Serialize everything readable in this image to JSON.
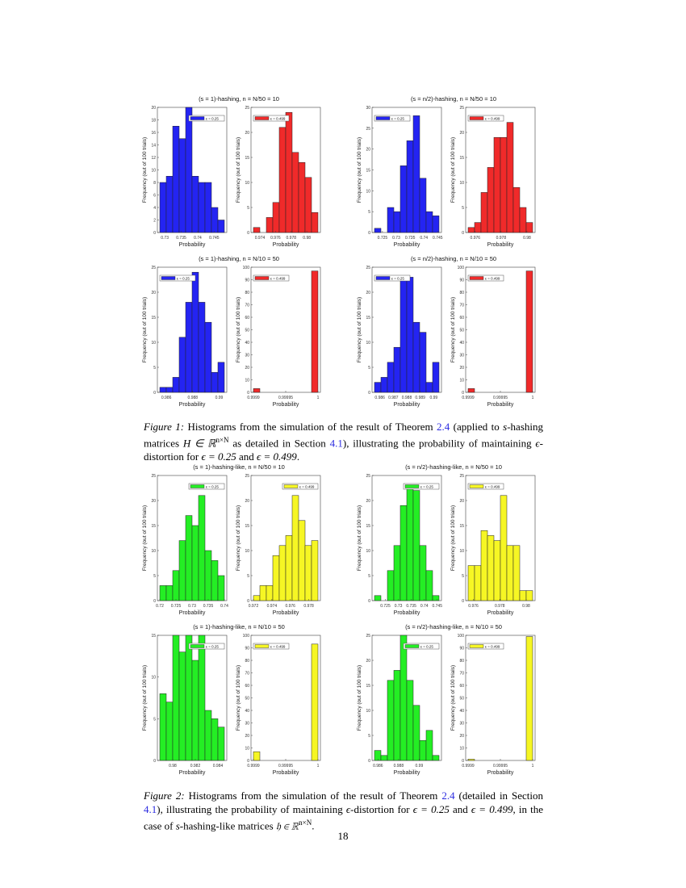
{
  "panel_titles": [
    "(s = 1)-hashing, n = N/50 = 10",
    "(s = n/2)-hashing, n = N/50 = 10",
    "(s = 1)-hashing, n = N/10 = 50",
    "(s = n/2)-hashing, n = N/10 = 50",
    "(s = 1)-hashing-like, n = N/50 = 10",
    "(s = n/2)-hashing-like, n = N/50 = 10",
    "(s = 1)-hashing-like, n = N/10 = 50",
    "(s = n/2)-hashing-like, n = N/10 = 50"
  ],
  "colors": {
    "blue": "#2424f2",
    "red": "#f02a2a",
    "green": "#24ee24",
    "yellow": "#f6f624",
    "edge": "#222222"
  },
  "chart_data": [
    {
      "type": "bar",
      "legend": "ε = 0.25",
      "legend_pos": "top-right",
      "color": "blue",
      "counts": [
        8,
        9,
        17,
        15,
        20,
        9,
        8,
        8,
        4,
        2
      ],
      "bin_range": [
        0.7285,
        0.7481
      ],
      "xticks": [
        0.73,
        0.735,
        0.74,
        0.745
      ],
      "ylim": [
        0,
        20
      ],
      "yticks": [
        0,
        2,
        4,
        6,
        8,
        10,
        12,
        14,
        16,
        18,
        20
      ],
      "xlabel": "Probability",
      "ylabel": "Frequency (out of 100 trials)"
    },
    {
      "type": "bar",
      "legend": "ε = 0.499",
      "legend_pos": "top-left",
      "color": "red",
      "counts": [
        1,
        0,
        3,
        6,
        21,
        24,
        16,
        14,
        11,
        4
      ],
      "bin_range": [
        0.97317,
        0.98143
      ],
      "xticks": [
        0.974,
        0.976,
        0.978,
        0.98
      ],
      "ylim": [
        0,
        25
      ],
      "yticks": [
        0,
        5,
        10,
        15,
        20,
        25
      ],
      "xlabel": "Probability",
      "ylabel": "Frequency (out of 100 trials)"
    },
    {
      "type": "bar",
      "legend": "ε = 0.25",
      "legend_pos": "top-left",
      "color": "blue",
      "counts": [
        1,
        0,
        6,
        5,
        16,
        22,
        28,
        13,
        5,
        4
      ],
      "bin_range": [
        0.7221,
        0.7455
      ],
      "xticks": [
        0.725,
        0.73,
        0.735,
        0.74,
        0.745
      ],
      "ylim": [
        0,
        30
      ],
      "yticks": [
        0,
        5,
        10,
        15,
        20,
        25,
        30
      ],
      "xlabel": "Probability",
      "ylabel": "Frequency (out of 100 trials)"
    },
    {
      "type": "bar",
      "legend": "ε = 0.499",
      "legend_pos": "top-left",
      "color": "red",
      "counts": [
        1,
        2,
        8,
        13,
        19,
        19,
        22,
        9,
        5,
        2
      ],
      "bin_range": [
        0.97545,
        0.98044
      ],
      "xticks": [
        0.976,
        0.978,
        0.98
      ],
      "ylim": [
        0,
        25
      ],
      "yticks": [
        0,
        5,
        10,
        15,
        20,
        25
      ],
      "xlabel": "Probability",
      "ylabel": "Frequency (out of 100 trials)"
    },
    {
      "type": "bar",
      "legend": "ε = 0.25",
      "legend_pos": "top-left",
      "color": "blue",
      "counts": [
        1,
        1,
        3,
        11,
        18,
        24,
        18,
        14,
        4,
        6
      ],
      "bin_range": [
        0.9855,
        0.9904
      ],
      "xticks": [
        0.986,
        0.988,
        0.99
      ],
      "ylim": [
        0,
        25
      ],
      "yticks": [
        0,
        5,
        10,
        15,
        20,
        25
      ],
      "xlabel": "Probability",
      "ylabel": "Frequency (out of 100 trials)"
    },
    {
      "type": "bar",
      "legend": "ε = 0.499",
      "legend_pos": "top-left",
      "color": "red",
      "counts": [
        3,
        0,
        0,
        0,
        0,
        0,
        0,
        0,
        0,
        97
      ],
      "bin_range": [
        0.9999,
        1.0
      ],
      "xticks": [
        0.9999,
        0.99995,
        1
      ],
      "ylim": [
        0,
        100
      ],
      "yticks": [
        0,
        10,
        20,
        30,
        40,
        50,
        60,
        70,
        80,
        90,
        100
      ],
      "xlabel": "Probability",
      "ylabel": "Frequency (out of 100 trials)"
    },
    {
      "type": "bar",
      "legend": "ε = 0.25",
      "legend_pos": "top-left",
      "color": "blue",
      "counts": [
        2,
        3,
        6,
        9,
        23,
        23,
        14,
        12,
        2,
        6
      ],
      "bin_range": [
        0.9856,
        0.9904
      ],
      "xticks": [
        0.986,
        0.987,
        0.988,
        0.989,
        0.99
      ],
      "ylim": [
        0,
        25
      ],
      "yticks": [
        0,
        5,
        10,
        15,
        20,
        25
      ],
      "xlabel": "Probability",
      "ylabel": "Frequency (out of 100 trials)"
    },
    {
      "type": "bar",
      "legend": "ε = 0.499",
      "legend_pos": "top-left",
      "color": "red",
      "counts": [
        3,
        0,
        0,
        0,
        0,
        0,
        0,
        0,
        0,
        97
      ],
      "bin_range": [
        0.9999,
        1.0
      ],
      "xticks": [
        0.9999,
        0.99995,
        1
      ],
      "ylim": [
        0,
        100
      ],
      "yticks": [
        0,
        10,
        20,
        30,
        40,
        50,
        60,
        70,
        80,
        90,
        100
      ],
      "xlabel": "Probability",
      "ylabel": "Frequency (out of 100 trials)"
    },
    {
      "type": "bar",
      "legend": "ε = 0.25",
      "legend_pos": "top-right",
      "color": "green",
      "counts": [
        3,
        3,
        6,
        12,
        17,
        15,
        21,
        10,
        8,
        5
      ],
      "bin_range": [
        0.72,
        0.74
      ],
      "xticks": [
        0.72,
        0.725,
        0.73,
        0.735,
        0.74
      ],
      "ylim": [
        0,
        25
      ],
      "yticks": [
        0,
        5,
        10,
        15,
        20,
        25
      ],
      "xlabel": "Probability",
      "ylabel": "Frequency (out of 100 trials)"
    },
    {
      "type": "bar",
      "legend": "ε = 0.499",
      "legend_pos": "top-right",
      "color": "yellow",
      "counts": [
        1,
        3,
        3,
        9,
        11,
        13,
        21,
        16,
        11,
        12
      ],
      "bin_range": [
        0.972,
        0.979
      ],
      "xticks": [
        0.972,
        0.974,
        0.976,
        0.978
      ],
      "ylim": [
        0,
        25
      ],
      "yticks": [
        0,
        5,
        10,
        15,
        20,
        25
      ],
      "xlabel": "Probability",
      "ylabel": "Frequency (out of 100 trials)"
    },
    {
      "type": "bar",
      "legend": "ε = 0.25",
      "legend_pos": "top-right",
      "color": "green",
      "counts": [
        1,
        0,
        6,
        11,
        19,
        23,
        22,
        11,
        6,
        1
      ],
      "bin_range": [
        0.7208,
        0.7457
      ],
      "xticks": [
        0.725,
        0.73,
        0.735,
        0.74,
        0.745
      ],
      "ylim": [
        0,
        25
      ],
      "yticks": [
        0,
        5,
        10,
        15,
        20,
        25
      ],
      "xlabel": "Probability",
      "ylabel": "Frequency (out of 100 trials)"
    },
    {
      "type": "bar",
      "legend": "ε = 0.499",
      "legend_pos": "top-left",
      "color": "yellow",
      "counts": [
        7,
        7,
        14,
        13,
        12,
        21,
        11,
        11,
        2,
        2
      ],
      "bin_range": [
        0.9756,
        0.98049
      ],
      "xticks": [
        0.976,
        0.978,
        0.98
      ],
      "ylim": [
        0,
        25
      ],
      "yticks": [
        0,
        5,
        10,
        15,
        20,
        25
      ],
      "xlabel": "Probability",
      "ylabel": "Frequency (out of 100 trials)"
    },
    {
      "type": "bar",
      "legend": "ε = 0.25",
      "legend_pos": "top-right",
      "color": "green",
      "counts": [
        8,
        7,
        15,
        13,
        15,
        12,
        15,
        6,
        5,
        4
      ],
      "bin_range": [
        0.97886,
        0.98457
      ],
      "xticks": [
        0.98,
        0.982,
        0.984
      ],
      "ylim": [
        0,
        15
      ],
      "yticks": [
        0,
        5,
        10,
        15
      ],
      "xlabel": "Probability",
      "ylabel": "Frequency (out of 100 trials)"
    },
    {
      "type": "bar",
      "legend": "ε = 0.499",
      "legend_pos": "top-left",
      "color": "yellow",
      "counts": [
        7,
        0,
        0,
        0,
        0,
        0,
        0,
        0,
        0,
        93
      ],
      "bin_range": [
        0.9999,
        1.0
      ],
      "xticks": [
        0.9999,
        0.99995,
        1
      ],
      "ylim": [
        0,
        100
      ],
      "yticks": [
        0,
        10,
        20,
        30,
        40,
        50,
        60,
        70,
        80,
        90,
        100
      ],
      "xlabel": "Probability",
      "ylabel": "Frequency (out of 100 trials)"
    },
    {
      "type": "bar",
      "legend": "ε = 0.25",
      "legend_pos": "top-right",
      "color": "green",
      "counts": [
        2,
        1,
        16,
        18,
        25,
        16,
        11,
        4,
        6,
        1
      ],
      "bin_range": [
        0.98566,
        0.99193
      ],
      "xticks": [
        0.986,
        0.988,
        0.99
      ],
      "ylim": [
        0,
        25
      ],
      "yticks": [
        0,
        5,
        10,
        15,
        20,
        25
      ],
      "xlabel": "Probability",
      "ylabel": "Frequency (out of 100 trials)"
    },
    {
      "type": "bar",
      "legend": "ε = 0.499",
      "legend_pos": "top-left",
      "color": "yellow",
      "counts": [
        1,
        0,
        0,
        0,
        0,
        0,
        0,
        0,
        0,
        99
      ],
      "bin_range": [
        0.9999,
        1.0
      ],
      "xticks": [
        0.9999,
        0.99995,
        1
      ],
      "ylim": [
        0,
        100
      ],
      "yticks": [
        0,
        10,
        20,
        30,
        40,
        50,
        60,
        70,
        80,
        90,
        100
      ],
      "xlabel": "Probability",
      "ylabel": "Frequency (out of 100 trials)"
    }
  ],
  "captions": [
    {
      "segments": [
        {
          "t": "lbl",
          "v": "Figure 1:"
        },
        {
          "t": "txt",
          "v": " Histograms from the simulation of the result of Theorem "
        },
        {
          "t": "ref",
          "v": "2.4"
        },
        {
          "t": "txt",
          "v": " (applied to "
        },
        {
          "t": "math",
          "v": "s"
        },
        {
          "t": "txt",
          "v": "-hashing matrices "
        },
        {
          "t": "math",
          "v": "H ∈ ℝ"
        },
        {
          "t": "sup",
          "v": "n×N"
        },
        {
          "t": "txt",
          "v": " as detailed in Section "
        },
        {
          "t": "ref",
          "v": "4.1"
        },
        {
          "t": "txt",
          "v": "), illustrating the probability of maintaining "
        },
        {
          "t": "math",
          "v": "ϵ"
        },
        {
          "t": "txt",
          "v": "-distortion for "
        },
        {
          "t": "math",
          "v": "ϵ = 0.25"
        },
        {
          "t": "txt",
          "v": " and "
        },
        {
          "t": "math",
          "v": "ϵ = 0.499"
        },
        {
          "t": "txt",
          "v": "."
        }
      ]
    },
    {
      "segments": [
        {
          "t": "lbl",
          "v": "Figure 2:"
        },
        {
          "t": "txt",
          "v": " Histograms from the simulation of the result of Theorem "
        },
        {
          "t": "ref",
          "v": "2.4"
        },
        {
          "t": "txt",
          "v": " (detailed in Section "
        },
        {
          "t": "ref",
          "v": "4.1"
        },
        {
          "t": "txt",
          "v": "), illustrating the probability of maintaining "
        },
        {
          "t": "math",
          "v": "ϵ"
        },
        {
          "t": "txt",
          "v": "-distortion for "
        },
        {
          "t": "math",
          "v": "ϵ = 0.25"
        },
        {
          "t": "txt",
          "v": " and "
        },
        {
          "t": "math",
          "v": "ϵ = 0.499"
        },
        {
          "t": "txt",
          "v": ", in the case of "
        },
        {
          "t": "math",
          "v": "s"
        },
        {
          "t": "txt",
          "v": "-hashing-like matrices "
        },
        {
          "t": "math",
          "v": "𝔥 ∈ ℝ"
        },
        {
          "t": "sup",
          "v": "n×N"
        },
        {
          "t": "txt",
          "v": "."
        }
      ]
    }
  ],
  "page_number": "18"
}
